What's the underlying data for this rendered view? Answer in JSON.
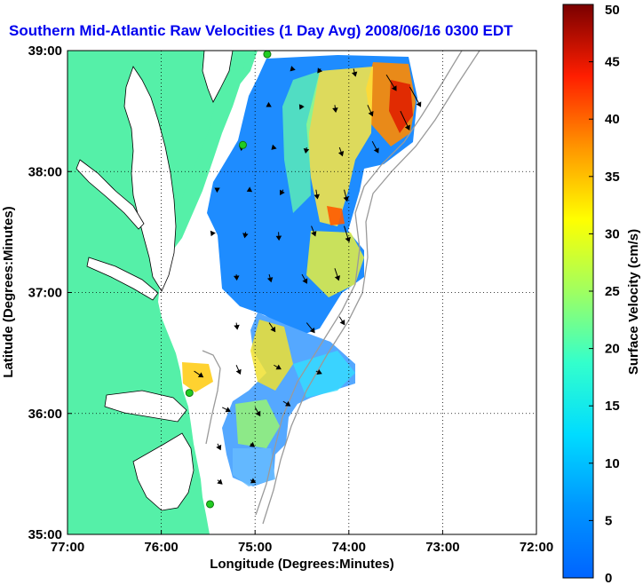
{
  "title": "Southern Mid-Atlantic Raw Velocities (1 Day Avg) 2008/06/16 0300 EDT",
  "colors": {
    "land": "#55f0a8",
    "ocean": "#ffffff",
    "title": "#0000ee",
    "arrow": "#000000",
    "isobath": "#9a9a9a",
    "station": "#22cc22"
  },
  "map": {
    "xlabel": "Longitude (Degrees:Minutes)",
    "ylabel": "Latitude (Degrees:Minutes)",
    "lon_range": [
      -77,
      -72
    ],
    "lat_range": [
      35,
      39
    ],
    "lon_ticks": [
      {
        "value": -77,
        "label": "77:00"
      },
      {
        "value": -76,
        "label": "76:00"
      },
      {
        "value": -75,
        "label": "75:00"
      },
      {
        "value": -74,
        "label": "74:00"
      },
      {
        "value": -73,
        "label": "73:00"
      },
      {
        "value": -72,
        "label": "72:00"
      }
    ],
    "lat_ticks": [
      {
        "value": 35,
        "label": "35:00"
      },
      {
        "value": 36,
        "label": "36:00"
      },
      {
        "value": 37,
        "label": "37:00"
      },
      {
        "value": 38,
        "label": "38:00"
      },
      {
        "value": 39,
        "label": "39:00"
      }
    ],
    "grid": "dotted",
    "stations": [
      {
        "name": "station-north",
        "lon": -74.87,
        "lat": 38.97
      },
      {
        "name": "station-delaware",
        "lon": -75.13,
        "lat": 38.22
      },
      {
        "name": "station-virginia",
        "lon": -75.7,
        "lat": 36.17
      },
      {
        "name": "station-hatteras",
        "lon": -75.48,
        "lat": 35.25
      }
    ]
  },
  "colorbar": {
    "label": "Surface Velocity (cm/s)",
    "min": 0,
    "max": 50,
    "ticks": [
      {
        "value": 0,
        "label": "0"
      },
      {
        "value": 5,
        "label": "5"
      },
      {
        "value": 10,
        "label": "10"
      },
      {
        "value": 15,
        "label": "15"
      },
      {
        "value": 20,
        "label": "20"
      },
      {
        "value": 25,
        "label": "25"
      },
      {
        "value": 30,
        "label": "30"
      },
      {
        "value": 35,
        "label": "35"
      },
      {
        "value": 40,
        "label": "40"
      },
      {
        "value": 45,
        "label": "45"
      },
      {
        "value": 50,
        "label": "50"
      }
    ]
  },
  "chart_data": {
    "type": "heatmap",
    "title": "Southern Mid-Atlantic Raw Velocities (1 Day Avg) 2008/06/16 0300 EDT",
    "xlabel": "Longitude (Degrees:Minutes)",
    "ylabel": "Latitude (Degrees:Minutes)",
    "xlim": [
      -77,
      -72
    ],
    "ylim": [
      35,
      39
    ],
    "colorbar_range": [
      0,
      50
    ],
    "colorbar_label": "Surface Velocity (cm/s)",
    "grid": true,
    "field": [
      {
        "lon": -74.6,
        "lat": 38.85,
        "speed": 6,
        "u": -4,
        "v": -4
      },
      {
        "lon": -74.3,
        "lat": 38.85,
        "speed": 10,
        "u": -6,
        "v": -8
      },
      {
        "lon": -73.95,
        "lat": 38.85,
        "speed": 16,
        "u": 4,
        "v": -15
      },
      {
        "lon": -73.6,
        "lat": 38.8,
        "speed": 38,
        "u": 20,
        "v": -32
      },
      {
        "lon": -73.35,
        "lat": 38.7,
        "speed": 46,
        "u": 22,
        "v": -40
      },
      {
        "lon": -74.85,
        "lat": 38.55,
        "speed": 6,
        "u": -5,
        "v": -3
      },
      {
        "lon": -74.5,
        "lat": 38.55,
        "speed": 9,
        "u": -4,
        "v": -8
      },
      {
        "lon": -74.15,
        "lat": 38.55,
        "speed": 14,
        "u": 2,
        "v": -14
      },
      {
        "lon": -73.8,
        "lat": 38.55,
        "speed": 25,
        "u": 10,
        "v": -22
      },
      {
        "lon": -73.45,
        "lat": 38.5,
        "speed": 42,
        "u": 18,
        "v": -38
      },
      {
        "lon": -75.15,
        "lat": 38.2,
        "speed": 4,
        "u": -3,
        "v": 2
      },
      {
        "lon": -74.8,
        "lat": 38.2,
        "speed": 6,
        "u": -4,
        "v": -4
      },
      {
        "lon": -74.45,
        "lat": 38.2,
        "speed": 11,
        "u": -2,
        "v": -11
      },
      {
        "lon": -74.1,
        "lat": 38.2,
        "speed": 18,
        "u": 6,
        "v": -17
      },
      {
        "lon": -73.75,
        "lat": 38.25,
        "speed": 26,
        "u": 12,
        "v": -23
      },
      {
        "lon": -75.4,
        "lat": 37.85,
        "speed": 6,
        "u": -5,
        "v": 3
      },
      {
        "lon": -75.05,
        "lat": 37.85,
        "speed": 7,
        "u": -6,
        "v": -3
      },
      {
        "lon": -74.7,
        "lat": 37.85,
        "speed": 12,
        "u": -6,
        "v": -10
      },
      {
        "lon": -74.35,
        "lat": 37.85,
        "speed": 19,
        "u": 3,
        "v": -18
      },
      {
        "lon": -74.05,
        "lat": 37.85,
        "speed": 24,
        "u": 6,
        "v": -23
      },
      {
        "lon": -75.45,
        "lat": 37.5,
        "speed": 8,
        "u": -3,
        "v": -7
      },
      {
        "lon": -75.1,
        "lat": 37.5,
        "speed": 12,
        "u": -2,
        "v": -11
      },
      {
        "lon": -74.75,
        "lat": 37.5,
        "speed": 16,
        "u": 1,
        "v": -16
      },
      {
        "lon": -74.4,
        "lat": 37.55,
        "speed": 22,
        "u": 8,
        "v": -20
      },
      {
        "lon": -74.05,
        "lat": 37.55,
        "speed": 34,
        "u": 10,
        "v": -32
      },
      {
        "lon": -75.2,
        "lat": 37.15,
        "speed": 11,
        "u": 1,
        "v": -11
      },
      {
        "lon": -74.85,
        "lat": 37.15,
        "speed": 16,
        "u": 4,
        "v": -15
      },
      {
        "lon": -74.5,
        "lat": 37.15,
        "speed": 21,
        "u": 10,
        "v": -18
      },
      {
        "lon": -74.15,
        "lat": 37.2,
        "speed": 26,
        "u": 8,
        "v": -24
      },
      {
        "lon": -75.2,
        "lat": 36.75,
        "speed": 13,
        "u": 2,
        "v": -13
      },
      {
        "lon": -74.85,
        "lat": 36.75,
        "speed": 22,
        "u": 12,
        "v": -18
      },
      {
        "lon": -74.45,
        "lat": 36.75,
        "speed": 26,
        "u": 16,
        "v": -20
      },
      {
        "lon": -74.1,
        "lat": 36.8,
        "speed": 19,
        "u": 10,
        "v": -16
      },
      {
        "lon": -75.65,
        "lat": 36.35,
        "speed": 22,
        "u": 18,
        "v": -12
      },
      {
        "lon": -75.2,
        "lat": 36.4,
        "speed": 20,
        "u": 8,
        "v": -18
      },
      {
        "lon": -74.8,
        "lat": 36.4,
        "speed": 16,
        "u": 14,
        "v": -8
      },
      {
        "lon": -74.35,
        "lat": 36.35,
        "speed": 12,
        "u": 11,
        "v": -5
      },
      {
        "lon": -75.35,
        "lat": 36.05,
        "speed": 18,
        "u": 16,
        "v": -8
      },
      {
        "lon": -75.0,
        "lat": 36.05,
        "speed": 20,
        "u": 10,
        "v": -17
      },
      {
        "lon": -74.7,
        "lat": 36.1,
        "speed": 17,
        "u": 14,
        "v": -9
      },
      {
        "lon": -75.4,
        "lat": 35.75,
        "speed": 14,
        "u": 6,
        "v": -12
      },
      {
        "lon": -75.05,
        "lat": 35.75,
        "speed": 10,
        "u": 8,
        "v": -6
      },
      {
        "lon": -75.4,
        "lat": 35.45,
        "speed": 12,
        "u": 9,
        "v": -8
      },
      {
        "lon": -75.05,
        "lat": 35.45,
        "speed": 11,
        "u": 10,
        "v": -5
      }
    ]
  }
}
